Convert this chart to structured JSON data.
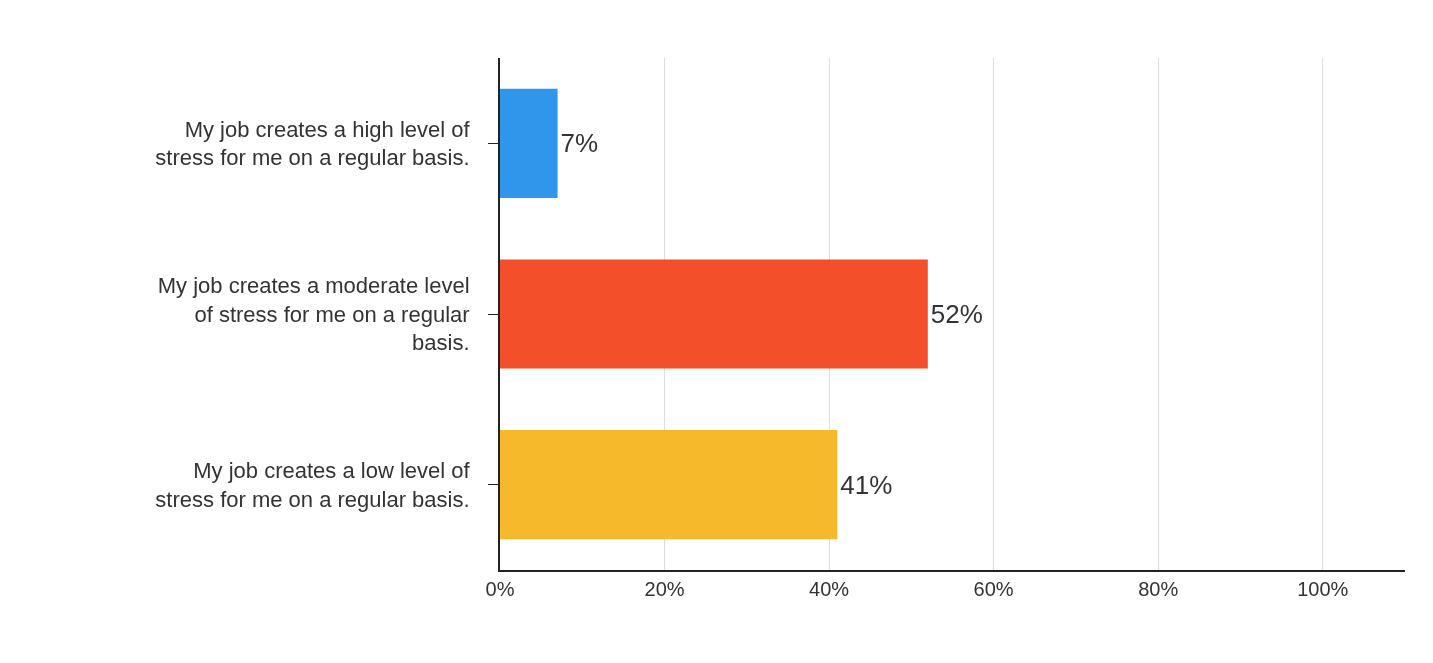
{
  "chart_data": {
    "type": "bar",
    "orientation": "horizontal",
    "categories": [
      "My job creates a high level of stress for me on a regular basis.",
      "My job creates a moderate level of stress for me on a regular basis.",
      "My job creates a low level of stress for me on a regular basis."
    ],
    "values": [
      7,
      52,
      41
    ],
    "colors": [
      "#3096ec",
      "#f44f2b",
      "#f6b92b"
    ],
    "value_labels": [
      "7%",
      "52%",
      "41%"
    ],
    "xlim": [
      0,
      110
    ],
    "xticks": [
      {
        "value": 0,
        "label": "0%"
      },
      {
        "value": 20,
        "label": "20%"
      },
      {
        "value": 40,
        "label": "40%"
      },
      {
        "value": 60,
        "label": "60%"
      },
      {
        "value": 80,
        "label": "80%"
      },
      {
        "value": 100,
        "label": "100%"
      }
    ],
    "grid": "x",
    "legend": false
  }
}
